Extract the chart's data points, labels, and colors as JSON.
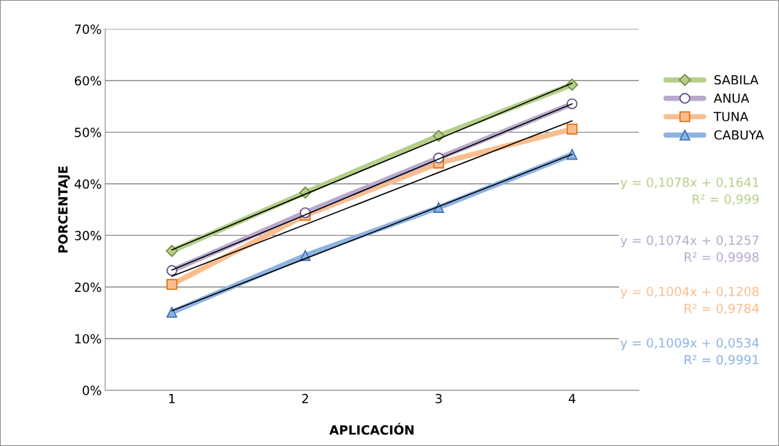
{
  "chart_data": {
    "type": "line",
    "xlabel": "APLICACIÓN",
    "ylabel": "PORCENTAJE",
    "x": [
      1,
      2,
      3,
      4
    ],
    "xlim": [
      0.5,
      4.5
    ],
    "xticks": [
      1,
      2,
      3,
      4
    ],
    "ylim": [
      0,
      0.7
    ],
    "yticks": [
      {
        "value": 0,
        "label": "0%"
      },
      {
        "value": 0.1,
        "label": "10%"
      },
      {
        "value": 0.2,
        "label": "20%"
      },
      {
        "value": 0.3,
        "label": "30%"
      },
      {
        "value": 0.4,
        "label": "40%"
      },
      {
        "value": 0.5,
        "label": "50%"
      },
      {
        "value": 0.6,
        "label": "60%"
      },
      {
        "value": 0.7,
        "label": "70%"
      }
    ],
    "grid": "y",
    "legend": "right",
    "line_style": "solid",
    "series": [
      {
        "name": "SABILA",
        "color": "#b5cf8a",
        "marker": "diamond",
        "values": [
          0.27,
          0.383,
          0.493,
          0.592
        ]
      },
      {
        "name": "ANUA",
        "color": "#b9a9cc",
        "marker": "circle",
        "values": [
          0.232,
          0.344,
          0.45,
          0.555
        ]
      },
      {
        "name": "TUNA",
        "color": "#f9be8f",
        "marker": "square",
        "values": [
          0.205,
          0.339,
          0.44,
          0.506
        ]
      },
      {
        "name": "CABUYA",
        "color": "#8db3e2",
        "marker": "triangle",
        "values": [
          0.151,
          0.261,
          0.354,
          0.457
        ]
      },
      {
        "type": "line",
        "color": "#000000",
        "marker": "none",
        "values": [
          0.272,
          0.38,
          0.487,
          0.595
        ]
      },
      {
        "type": "line",
        "color": "#000000",
        "marker": "none",
        "values": [
          0.233,
          0.34,
          0.448,
          0.555
        ]
      },
      {
        "type": "line",
        "color": "#000000",
        "marker": "none",
        "values": [
          0.221,
          0.321,
          0.422,
          0.522
        ]
      },
      {
        "type": "line",
        "color": "#000000",
        "marker": "none",
        "values": [
          0.154,
          0.255,
          0.356,
          0.457
        ]
      }
    ],
    "annotations": [
      "y = 0,1078x + 0,1641\nR² = 0,999",
      "y = 0,1074x + 0,1257\nR² = 0,9998",
      "y = 0,1004x + 0,1208\nR² = 0,9784",
      "y = 0,1009x + 0,0534\nR² = 0,9991"
    ]
  }
}
